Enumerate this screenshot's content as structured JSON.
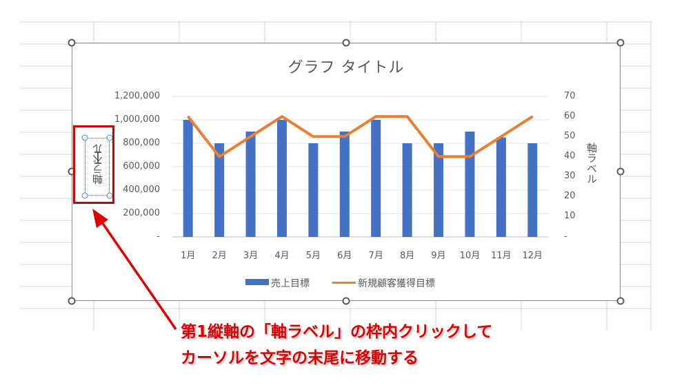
{
  "chart": {
    "title": "グラフ タイトル",
    "primary_axis_label": "軸ラベル",
    "secondary_axis_label": "軸ラベル",
    "primary_ticks": [
      "1,200,000",
      "1,000,000",
      "800,000",
      "600,000",
      "400,000",
      "200,000",
      "-"
    ],
    "secondary_ticks": [
      "70",
      "60",
      "50",
      "40",
      "30",
      "20",
      "10",
      "-"
    ],
    "legend": {
      "bar": "売上目標",
      "line": "新規顧客獲得目標"
    }
  },
  "chart_data": {
    "type": "bar",
    "categories": [
      "1月",
      "2月",
      "3月",
      "4月",
      "5月",
      "6月",
      "7月",
      "8月",
      "9月",
      "10月",
      "11月",
      "12月"
    ],
    "series": [
      {
        "name": "売上目標",
        "type": "bar",
        "axis": "primary",
        "values": [
          1000000,
          800000,
          900000,
          1000000,
          800000,
          900000,
          1000000,
          800000,
          800000,
          900000,
          850000,
          800000
        ]
      },
      {
        "name": "新規顧客獲得目標",
        "type": "line",
        "axis": "secondary",
        "values": [
          60,
          40,
          50,
          60,
          50,
          50,
          60,
          60,
          40,
          40,
          50,
          60
        ]
      }
    ],
    "ylim": [
      0,
      1200000
    ],
    "y2lim": [
      0,
      70
    ],
    "grid": true,
    "legend_position": "bottom",
    "colors": {
      "bar": "#4472c4",
      "line": "#ed7d31"
    }
  },
  "annotation": {
    "line1": "第1縦軸の「軸ラベル」の枠内クリックして",
    "line2": "カーソルを文字の末尾に移動する",
    "color": "#e00000"
  }
}
